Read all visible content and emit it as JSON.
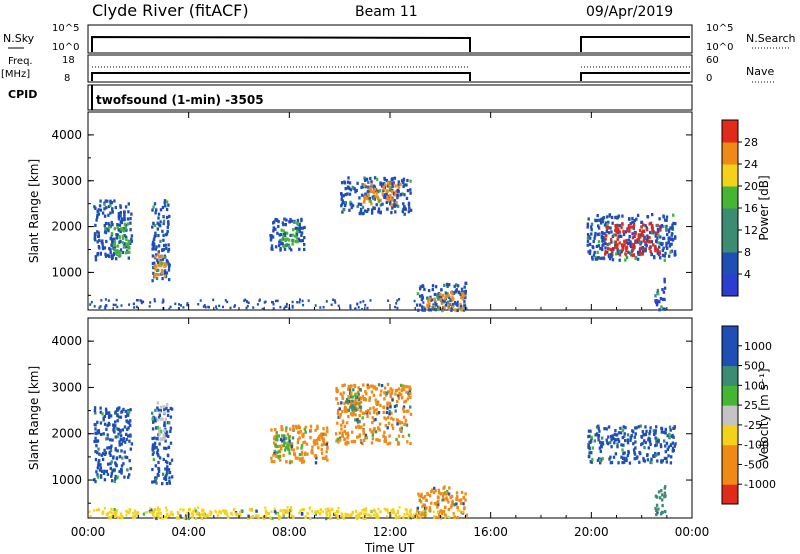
{
  "header": {
    "title": "Clyde River (fitACF)",
    "beam": "Beam 11",
    "date": "09/Apr/2019"
  },
  "sky_panel": {
    "left_label": "N.Sky",
    "right_label": "N.Search",
    "left_ticks": [
      "10^5",
      "10^0"
    ],
    "right_ticks": [
      "10^5",
      "10^0"
    ]
  },
  "freq_panel": {
    "left_label": "Freq.",
    "left_unit": "[MHz]",
    "right_label": "Nave",
    "left_ticks": [
      "18",
      "8"
    ],
    "right_ticks": [
      "60",
      "0"
    ]
  },
  "cpid_panel": {
    "label": "CPID",
    "text": "twofsound (1-min) -3505"
  },
  "colors": {
    "blue": "#1f4fb5",
    "deep_blue": "#2a3fd0",
    "teal": "#3c8c74",
    "green": "#44b634",
    "yellow": "#f5d21a",
    "orange": "#f08a16",
    "red": "#e22a1a",
    "grey": "#c4c4c4"
  },
  "chart_data": [
    {
      "type": "heatmap",
      "title": "",
      "xlabel": "Time UT",
      "ylabel": "Slant Range [km]",
      "x_ticks": [
        "00:00",
        "04:00",
        "08:00",
        "12:00",
        "16:00",
        "20:00",
        "00:00"
      ],
      "y_ticks": [
        "1000",
        "2000",
        "3000",
        "4000"
      ],
      "xlim": [
        0,
        24
      ],
      "ylim": [
        180,
        4500
      ],
      "colorbar": {
        "label": "Power [dB]",
        "ticks": [
          "4",
          "8",
          "12",
          "16",
          "20",
          "24",
          "28"
        ],
        "range": [
          0,
          30
        ]
      },
      "patches": [
        {
          "t0": 0.2,
          "t1": 1.7,
          "r0": 1300,
          "r1": 2600,
          "color": "blue"
        },
        {
          "t0": 0.9,
          "t1": 1.6,
          "r0": 1400,
          "r1": 2100,
          "color": "green"
        },
        {
          "t0": 2.5,
          "t1": 3.2,
          "r0": 800,
          "r1": 2600,
          "color": "blue"
        },
        {
          "t0": 2.6,
          "t1": 3.1,
          "r0": 900,
          "r1": 1500,
          "color": "orange"
        },
        {
          "t0": 7.2,
          "t1": 8.6,
          "r0": 1500,
          "r1": 2200,
          "color": "blue"
        },
        {
          "t0": 7.6,
          "t1": 8.3,
          "r0": 1600,
          "r1": 2000,
          "color": "green"
        },
        {
          "t0": 10.0,
          "t1": 12.8,
          "r0": 2300,
          "r1": 3100,
          "color": "blue"
        },
        {
          "t0": 10.8,
          "t1": 12.4,
          "r0": 2500,
          "r1": 3000,
          "color": "orange"
        },
        {
          "t0": 13.0,
          "t1": 15.0,
          "r0": 200,
          "r1": 800,
          "color": "blue"
        },
        {
          "t0": 13.3,
          "t1": 15.0,
          "r0": 200,
          "r1": 600,
          "color": "orange"
        },
        {
          "t0": 19.8,
          "t1": 23.3,
          "r0": 1300,
          "r1": 2300,
          "color": "blue"
        },
        {
          "t0": 20.5,
          "t1": 22.7,
          "r0": 1400,
          "r1": 2100,
          "color": "red"
        },
        {
          "t0": 22.5,
          "t1": 22.9,
          "r0": 200,
          "r1": 900,
          "color": "deep_blue"
        }
      ]
    },
    {
      "type": "heatmap",
      "title": "",
      "xlabel": "Time UT",
      "ylabel": "Slant Range [km]",
      "x_ticks": [
        "00:00",
        "04:00",
        "08:00",
        "12:00",
        "16:00",
        "20:00",
        "00:00"
      ],
      "y_ticks": [
        "1000",
        "2000",
        "3000",
        "4000"
      ],
      "xlim": [
        0,
        24
      ],
      "ylim": [
        180,
        4500
      ],
      "colorbar": {
        "label": "Velocity [m s^-1]",
        "ticks": [
          "1000",
          "500",
          "100",
          "25",
          "-25",
          "-100",
          "-500",
          "-1000"
        ],
        "range": [
          -1000,
          1000
        ]
      },
      "patches": [
        {
          "t0": 0.2,
          "t1": 1.7,
          "r0": 1000,
          "r1": 2600,
          "color": "blue"
        },
        {
          "t0": 2.5,
          "t1": 3.3,
          "r0": 900,
          "r1": 2600,
          "color": "blue"
        },
        {
          "t0": 2.7,
          "t1": 3.1,
          "r0": 1900,
          "r1": 2700,
          "color": "grey"
        },
        {
          "t0": 7.2,
          "t1": 9.5,
          "r0": 1400,
          "r1": 2200,
          "color": "orange"
        },
        {
          "t0": 7.4,
          "t1": 8.0,
          "r0": 1500,
          "r1": 2000,
          "color": "green"
        },
        {
          "t0": 9.8,
          "t1": 12.8,
          "r0": 1800,
          "r1": 3100,
          "color": "orange"
        },
        {
          "t0": 10.2,
          "t1": 10.8,
          "r0": 2500,
          "r1": 3000,
          "color": "teal"
        },
        {
          "t0": 13.0,
          "t1": 15.0,
          "r0": 200,
          "r1": 900,
          "color": "orange"
        },
        {
          "t0": 0.5,
          "t1": 13.0,
          "r0": 200,
          "r1": 400,
          "color": "yellow"
        },
        {
          "t0": 19.8,
          "t1": 23.3,
          "r0": 1400,
          "r1": 2200,
          "color": "blue"
        },
        {
          "t0": 22.5,
          "t1": 22.9,
          "r0": 200,
          "r1": 900,
          "color": "teal"
        }
      ]
    }
  ]
}
